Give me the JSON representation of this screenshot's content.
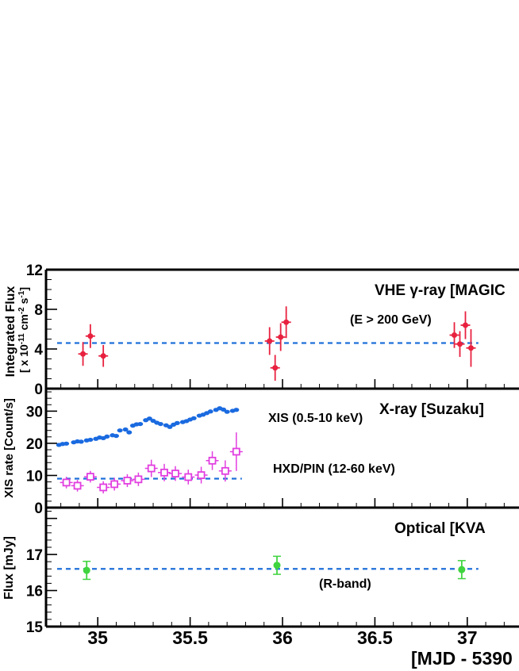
{
  "colors": {
    "vhe": "#e8213f",
    "xis": "#1a6ae0",
    "pin": "#e23ee0",
    "optical": "#3fd43f",
    "reference_line": "#1e6fd9",
    "axis": "#000000"
  },
  "x_axis": {
    "label": "[MJD - 5390",
    "ticks": [
      "35",
      "35.5",
      "36",
      "36.5",
      "37"
    ]
  },
  "chart_data": [
    {
      "type": "scatter",
      "panel": "vhe",
      "title": "VHE γ-ray [MAGIC",
      "subtitle": "(E > 200 GeV)",
      "ylabel": [
        "Integrated Flux",
        "[ x 10-11 cm-2 s-1]"
      ],
      "ylabel_parts": {
        "prefix": "[ x 10",
        "exp1": "-11",
        "mid": " cm",
        "exp2": "-2",
        "mid2": " s",
        "exp3": "-1",
        "suffix": "]"
      },
      "ylim": [
        0,
        12
      ],
      "yticks": [
        "0",
        "4",
        "8",
        "12"
      ],
      "xlim": [
        34.72,
        37.28
      ],
      "reference_level": 4.6,
      "series": [
        {
          "name": "MAGIC",
          "x": [
            34.92,
            34.96,
            35.03,
            35.93,
            35.96,
            35.99,
            36.02,
            36.93,
            36.96,
            36.99,
            37.02
          ],
          "y": [
            3.5,
            5.3,
            3.3,
            4.8,
            2.1,
            5.2,
            6.7,
            5.4,
            4.5,
            6.4,
            4.1
          ],
          "err": [
            1.2,
            1.2,
            1.1,
            1.4,
            1.3,
            1.4,
            1.6,
            1.3,
            1.3,
            1.4,
            1.9
          ]
        }
      ]
    },
    {
      "type": "scatter",
      "panel": "xray",
      "title": "X-ray [Suzaku]",
      "ylabel": "XIS rate [Count/s]",
      "ylim": [
        0,
        37
      ],
      "yticks": [
        "0",
        "10",
        "20",
        "30"
      ],
      "xlim": [
        34.72,
        37.28
      ],
      "reference_level": 9.0,
      "reference_xrange": [
        34.78,
        35.78
      ],
      "series": [
        {
          "name": "XIS (0.5-10 keV)",
          "x": [
            34.79,
            34.81,
            34.83,
            34.87,
            34.89,
            34.91,
            34.94,
            34.96,
            34.99,
            35.01,
            35.03,
            35.05,
            35.08,
            35.1,
            35.12,
            35.15,
            35.17,
            35.19,
            35.21,
            35.23,
            35.26,
            35.28,
            35.3,
            35.32,
            35.34,
            35.37,
            35.39,
            35.41,
            35.43,
            35.46,
            35.48,
            35.5,
            35.52,
            35.55,
            35.57,
            35.59,
            35.61,
            35.64,
            35.66,
            35.68,
            35.7,
            35.73,
            35.75
          ],
          "y": [
            19.5,
            19.8,
            19.9,
            20.3,
            20.6,
            20.5,
            20.9,
            21.1,
            21.4,
            21.8,
            21.6,
            22.1,
            22.5,
            22.3,
            24.0,
            24.3,
            23.4,
            25.5,
            25.9,
            26.0,
            27.2,
            27.7,
            27.0,
            26.4,
            26.0,
            25.6,
            25.1,
            25.8,
            26.3,
            26.6,
            26.9,
            27.4,
            27.8,
            28.6,
            28.9,
            29.4,
            29.9,
            30.4,
            30.9,
            30.5,
            29.8,
            30.1,
            30.4
          ]
        },
        {
          "name": "HXD/PIN (12-60 keV)",
          "x": [
            34.83,
            34.89,
            34.96,
            35.03,
            35.09,
            35.16,
            35.22,
            35.29,
            35.36,
            35.42,
            35.49,
            35.56,
            35.62,
            35.69,
            35.75
          ],
          "y": [
            7.8,
            6.8,
            9.6,
            6.3,
            7.3,
            8.4,
            8.8,
            12.2,
            10.9,
            10.6,
            9.5,
            10.1,
            14.6,
            11.4,
            17.4
          ],
          "err": [
            1.8,
            1.8,
            1.8,
            1.9,
            2.0,
            2.0,
            2.1,
            2.7,
            2.7,
            2.3,
            2.3,
            2.6,
            2.9,
            3.3,
            6.0
          ]
        }
      ]
    },
    {
      "type": "scatter",
      "panel": "optical",
      "title": "Optical [KVA",
      "subtitle": "(R-band)",
      "ylabel": "Flux [mJy]",
      "ylim": [
        15,
        18.3
      ],
      "yticks": [
        "15",
        "16",
        "17"
      ],
      "xlim": [
        34.72,
        37.28
      ],
      "reference_level": 16.6,
      "series": [
        {
          "name": "KVA",
          "x": [
            34.94,
            35.97,
            36.97
          ],
          "y": [
            16.56,
            16.7,
            16.58
          ],
          "err": [
            0.25,
            0.25,
            0.25
          ]
        }
      ]
    }
  ]
}
